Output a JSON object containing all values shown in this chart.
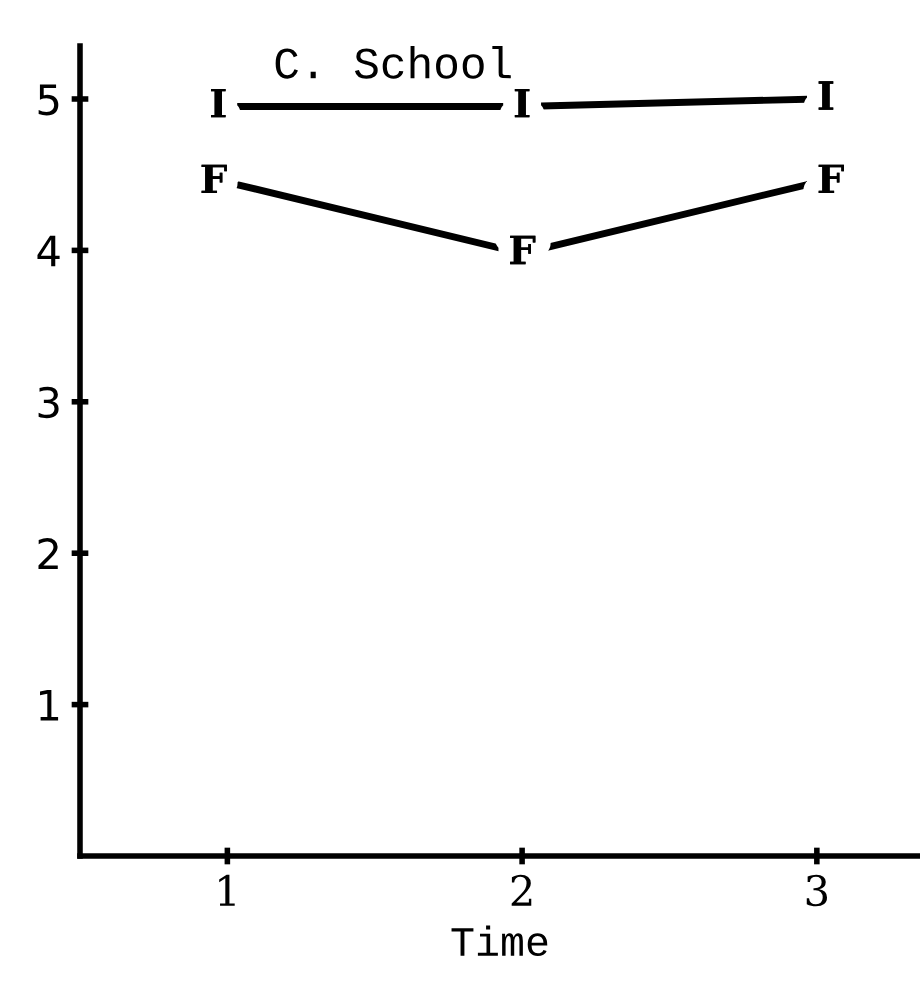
{
  "chart_data": {
    "type": "line",
    "title": "C. School",
    "xlabel": "Time",
    "x": [
      1,
      2,
      3
    ],
    "series": [
      {
        "name": "I",
        "color": "#000000",
        "values": [
          4.95,
          4.95,
          5.0
        ]
      },
      {
        "name": "F",
        "color": "#000000",
        "values": [
          4.45,
          3.98,
          4.45
        ]
      }
    ],
    "xlim": [
      0.5,
      3.35
    ],
    "ylim": [
      0,
      5.35
    ],
    "xticks": [
      1,
      2,
      3
    ],
    "yticks": [
      1,
      2,
      3,
      4,
      5
    ],
    "grid": false,
    "legend": false,
    "line_style": "solid"
  }
}
